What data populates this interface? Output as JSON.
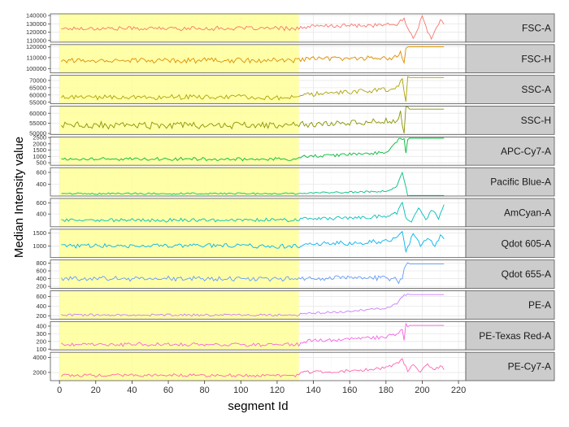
{
  "chart_data": {
    "type": "line",
    "xlabel": "segment Id",
    "ylabel": "Median Intensity value",
    "xlim": [
      -5,
      224
    ],
    "x_ticks": [
      0,
      20,
      40,
      60,
      80,
      100,
      120,
      140,
      160,
      180,
      200,
      220
    ],
    "x_tick_labels": [
      "0",
      "20",
      "40",
      "60",
      "80",
      "100",
      "120",
      "140",
      "160",
      "180",
      "200",
      "220"
    ],
    "highlight_range": [
      0,
      132
    ],
    "highlight_color": "#FFFF99",
    "strip_color": "#CCCCCC",
    "grid": true,
    "panels": [
      {
        "name": "FSC-A",
        "color": "#F8766D",
        "ylim": [
          108000,
          142000
        ],
        "yticks": [
          140000,
          130000,
          120000,
          110000
        ],
        "ytick_labels": [
          "140000",
          "130000",
          "120000",
          "110000"
        ],
        "baseline": 124500,
        "noise": 2200,
        "tail": [
          [
            133,
            126000
          ],
          [
            150,
            127500
          ],
          [
            170,
            128000
          ],
          [
            185,
            129000
          ],
          [
            190,
            135000
          ],
          [
            195,
            112000
          ],
          [
            200,
            138000
          ],
          [
            205,
            111000
          ],
          [
            210,
            136000
          ],
          [
            212,
            127000
          ]
        ]
      },
      {
        "name": "FSC-H",
        "color": "#DB8E00",
        "ylim": [
          96000,
          122000
        ],
        "yticks": [
          120000,
          110000,
          100000
        ],
        "ytick_labels": [
          "120000",
          "110000",
          "100000"
        ],
        "baseline": 107500,
        "noise": 2000,
        "tail": [
          [
            133,
            108500
          ],
          [
            160,
            109500
          ],
          [
            185,
            110000
          ],
          [
            188,
            114000
          ],
          [
            190,
            103000
          ],
          [
            191,
            120000
          ],
          [
            212,
            120000
          ]
        ]
      },
      {
        "name": "SSC-A",
        "color": "#AEA200",
        "ylim": [
          54000,
          73500
        ],
        "yticks": [
          70000,
          65000,
          60000,
          55000
        ],
        "ytick_labels": [
          "70000",
          "65000",
          "60000",
          "55000"
        ],
        "baseline": 58500,
        "noise": 1500,
        "tail": [
          [
            133,
            60000
          ],
          [
            160,
            62000
          ],
          [
            185,
            64000
          ],
          [
            189,
            70000
          ],
          [
            191,
            57000
          ],
          [
            192,
            72000
          ],
          [
            212,
            72000
          ]
        ]
      },
      {
        "name": "SSC-H",
        "color": "#8A9400",
        "ylim": [
          49500,
          63500
        ],
        "yticks": [
          60000,
          55000,
          50000
        ],
        "ytick_labels": [
          "60000",
          "55000",
          "50000"
        ],
        "baseline": 54000,
        "noise": 1500,
        "tail": [
          [
            133,
            54500
          ],
          [
            160,
            55500
          ],
          [
            185,
            56500
          ],
          [
            188,
            60000
          ],
          [
            190,
            51000
          ],
          [
            191,
            62000
          ],
          [
            212,
            62000
          ]
        ]
      },
      {
        "name": "APC-Cy7-A",
        "color": "#00BA38",
        "ylim": [
          300,
          2550
        ],
        "yticks": [
          2500,
          2000,
          1500,
          1000,
          500
        ],
        "ytick_labels": [
          "2500",
          "2000",
          "1500",
          "1000",
          "500"
        ],
        "baseline": 800,
        "noise": 120,
        "tail": [
          [
            133,
            1000
          ],
          [
            160,
            1150
          ],
          [
            180,
            1300
          ],
          [
            187,
            2300
          ],
          [
            190,
            2450
          ],
          [
            191,
            1200
          ],
          [
            192,
            2450
          ],
          [
            212,
            2450
          ]
        ]
      },
      {
        "name": "Pacific Blue-A",
        "color": "#00BF7D",
        "ylim": [
          200,
          680
        ],
        "yticks": [
          600,
          400
        ],
        "ytick_labels": [
          "600",
          "400"
        ],
        "baseline": 240,
        "noise": 14,
        "tail": [
          [
            133,
            250
          ],
          [
            160,
            265
          ],
          [
            180,
            280
          ],
          [
            186,
            360
          ],
          [
            189,
            600
          ],
          [
            191,
            350
          ],
          [
            192,
            210
          ],
          [
            212,
            210
          ]
        ]
      },
      {
        "name": "AmCyan-A",
        "color": "#00C0B8",
        "ylim": [
          170,
          680
        ],
        "yticks": [
          600,
          400
        ],
        "ytick_labels": [
          "600",
          "400"
        ],
        "baseline": 290,
        "noise": 28,
        "tail": [
          [
            133,
            310
          ],
          [
            160,
            330
          ],
          [
            180,
            360
          ],
          [
            186,
            420
          ],
          [
            189,
            600
          ],
          [
            191,
            330
          ],
          [
            194,
            240
          ],
          [
            198,
            520
          ],
          [
            202,
            310
          ],
          [
            206,
            480
          ],
          [
            209,
            330
          ],
          [
            212,
            560
          ]
        ]
      },
      {
        "name": "Qdot 605-A",
        "color": "#00B4EF",
        "ylim": [
          550,
          1650
        ],
        "yticks": [
          1500,
          1000
        ],
        "ytick_labels": [
          "1500",
          "1000"
        ],
        "baseline": 1000,
        "noise": 80,
        "tail": [
          [
            133,
            1050
          ],
          [
            160,
            1120
          ],
          [
            180,
            1180
          ],
          [
            186,
            1350
          ],
          [
            189,
            1500
          ],
          [
            191,
            800
          ],
          [
            195,
            1450
          ],
          [
            199,
            1020
          ],
          [
            203,
            1300
          ],
          [
            207,
            1050
          ],
          [
            210,
            1400
          ],
          [
            212,
            1250
          ]
        ]
      },
      {
        "name": "Qdot 655-A",
        "color": "#619CFF",
        "ylim": [
          150,
          880
        ],
        "yticks": [
          800,
          600,
          400,
          200
        ],
        "ytick_labels": [
          "800",
          "600",
          "400",
          "200"
        ],
        "baseline": 400,
        "noise": 55,
        "tail": [
          [
            133,
            400
          ],
          [
            160,
            420
          ],
          [
            180,
            410
          ],
          [
            185,
            380
          ],
          [
            187,
            280
          ],
          [
            189,
            450
          ],
          [
            191,
            780
          ],
          [
            212,
            780
          ]
        ]
      },
      {
        "name": "PE-A",
        "color": "#C77CFF",
        "ylim": [
          130,
          720
        ],
        "yticks": [
          600,
          400,
          200
        ],
        "ytick_labels": [
          "600",
          "400",
          "200"
        ],
        "baseline": 215,
        "noise": 20,
        "tail": [
          [
            133,
            240
          ],
          [
            160,
            290
          ],
          [
            180,
            360
          ],
          [
            186,
            460
          ],
          [
            189,
            600
          ],
          [
            191,
            640
          ],
          [
            212,
            640
          ]
        ]
      },
      {
        "name": "PE-Texas Red-A",
        "color": "#F564E3",
        "ylim": [
          90,
          460
        ],
        "yticks": [
          400,
          300,
          200,
          100
        ],
        "ytick_labels": [
          "400",
          "300",
          "200",
          "100"
        ],
        "baseline": 160,
        "noise": 22,
        "tail": [
          [
            133,
            200
          ],
          [
            160,
            230
          ],
          [
            180,
            260
          ],
          [
            186,
            300
          ],
          [
            189,
            360
          ],
          [
            190,
            190
          ],
          [
            191,
            410
          ],
          [
            212,
            410
          ]
        ]
      },
      {
        "name": "PE-Cy7-A",
        "color": "#FF64B0",
        "ylim": [
          900,
          4700
        ],
        "yticks": [
          4000,
          2000
        ],
        "ytick_labels": [
          "4000",
          "2000"
        ],
        "baseline": 1600,
        "noise": 180,
        "tail": [
          [
            133,
            2000
          ],
          [
            160,
            2200
          ],
          [
            180,
            2600
          ],
          [
            186,
            3200
          ],
          [
            189,
            3800
          ],
          [
            192,
            2200
          ],
          [
            195,
            3200
          ],
          [
            199,
            2100
          ],
          [
            203,
            3000
          ],
          [
            207,
            2300
          ],
          [
            210,
            2900
          ],
          [
            212,
            2400
          ]
        ]
      }
    ]
  }
}
